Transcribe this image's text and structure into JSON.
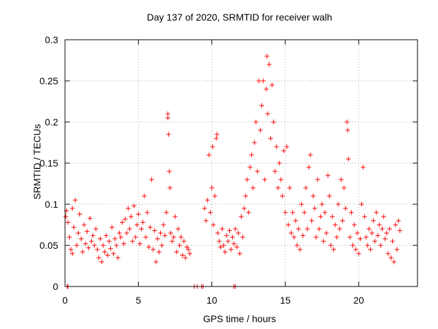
{
  "chart_data": {
    "type": "scatter",
    "title": "Day 137 of 2020, SRMTID for receiver walh",
    "xlabel": "GPS time / hours",
    "ylabel": "SRMTID / TECUs",
    "xlim": [
      0,
      24
    ],
    "ylim": [
      0,
      0.3
    ],
    "xticks": [
      0,
      5,
      10,
      15,
      20
    ],
    "xtick_labels": [
      "0",
      "5",
      "10",
      "15",
      "20"
    ],
    "yticks": [
      0,
      0.05,
      0.1,
      0.15,
      0.2,
      0.25,
      0.3
    ],
    "ytick_labels": [
      "0",
      "0.05",
      "0.1",
      "0.15",
      "0.2",
      "0.25",
      "0.3"
    ],
    "grid": true,
    "marker": "plus",
    "marker_color": "#ff0000",
    "series": [
      {
        "name": "SRMTID",
        "points": [
          [
            0.15,
            0.0
          ],
          [
            0.2,
            0.0
          ],
          [
            8.8,
            0.0
          ],
          [
            9.0,
            0.0
          ],
          [
            9.3,
            0.0
          ],
          [
            9.4,
            0.0
          ],
          [
            11.5,
            0.0
          ],
          [
            11.6,
            0.0
          ],
          [
            0.05,
            0.085
          ],
          [
            0.1,
            0.092
          ],
          [
            0.2,
            0.078
          ],
          [
            0.3,
            0.06
          ],
          [
            0.4,
            0.045
          ],
          [
            0.5,
            0.04
          ],
          [
            0.5,
            0.095
          ],
          [
            0.6,
            0.072
          ],
          [
            0.7,
            0.105
          ],
          [
            0.8,
            0.05
          ],
          [
            0.9,
            0.065
          ],
          [
            1.0,
            0.088
          ],
          [
            1.1,
            0.058
          ],
          [
            1.2,
            0.042
          ],
          [
            1.3,
            0.075
          ],
          [
            1.4,
            0.052
          ],
          [
            1.5,
            0.067
          ],
          [
            1.6,
            0.047
          ],
          [
            1.7,
            0.083
          ],
          [
            1.8,
            0.055
          ],
          [
            1.9,
            0.062
          ],
          [
            2.0,
            0.05
          ],
          [
            2.1,
            0.07
          ],
          [
            2.2,
            0.045
          ],
          [
            2.3,
            0.035
          ],
          [
            2.4,
            0.058
          ],
          [
            2.5,
            0.03
          ],
          [
            2.6,
            0.05
          ],
          [
            2.7,
            0.042
          ],
          [
            2.8,
            0.062
          ],
          [
            2.9,
            0.038
          ],
          [
            3.0,
            0.055
          ],
          [
            3.1,
            0.046
          ],
          [
            3.2,
            0.072
          ],
          [
            3.3,
            0.04
          ],
          [
            3.4,
            0.058
          ],
          [
            3.5,
            0.05
          ],
          [
            3.6,
            0.035
          ],
          [
            3.7,
            0.065
          ],
          [
            3.8,
            0.06
          ],
          [
            3.9,
            0.078
          ],
          [
            4.0,
            0.052
          ],
          [
            4.1,
            0.082
          ],
          [
            4.2,
            0.065
          ],
          [
            4.3,
            0.095
          ],
          [
            4.4,
            0.07
          ],
          [
            4.5,
            0.085
          ],
          [
            4.6,
            0.055
          ],
          [
            4.7,
            0.098
          ],
          [
            4.8,
            0.06
          ],
          [
            4.9,
            0.075
          ],
          [
            5.0,
            0.088
          ],
          [
            5.1,
            0.052
          ],
          [
            5.2,
            0.07
          ],
          [
            5.3,
            0.078
          ],
          [
            5.4,
            0.11
          ],
          [
            5.5,
            0.06
          ],
          [
            5.6,
            0.09
          ],
          [
            5.7,
            0.048
          ],
          [
            5.8,
            0.072
          ],
          [
            5.9,
            0.13
          ],
          [
            6.0,
            0.045
          ],
          [
            6.1,
            0.068
          ],
          [
            6.2,
            0.03
          ],
          [
            6.3,
            0.058
          ],
          [
            6.4,
            0.042
          ],
          [
            6.5,
            0.065
          ],
          [
            6.6,
            0.05
          ],
          [
            6.7,
            0.075
          ],
          [
            6.8,
            0.062
          ],
          [
            6.9,
            0.09
          ],
          [
            7.0,
            0.21
          ],
          [
            7.0,
            0.205
          ],
          [
            7.05,
            0.185
          ],
          [
            7.1,
            0.14
          ],
          [
            7.15,
            0.12
          ],
          [
            7.2,
            0.065
          ],
          [
            7.3,
            0.055
          ],
          [
            7.4,
            0.06
          ],
          [
            7.5,
            0.085
          ],
          [
            7.6,
            0.042
          ],
          [
            7.7,
            0.07
          ],
          [
            7.8,
            0.05
          ],
          [
            7.9,
            0.06
          ],
          [
            8.0,
            0.038
          ],
          [
            8.1,
            0.055
          ],
          [
            8.2,
            0.035
          ],
          [
            8.3,
            0.048
          ],
          [
            8.4,
            0.045
          ],
          [
            8.5,
            0.04
          ],
          [
            9.5,
            0.095
          ],
          [
            9.6,
            0.08
          ],
          [
            9.7,
            0.105
          ],
          [
            9.8,
            0.16
          ],
          [
            9.9,
            0.09
          ],
          [
            10.0,
            0.12
          ],
          [
            10.05,
            0.17
          ],
          [
            10.1,
            0.075
          ],
          [
            10.2,
            0.11
          ],
          [
            10.3,
            0.18
          ],
          [
            10.35,
            0.185
          ],
          [
            10.4,
            0.065
          ],
          [
            10.5,
            0.055
          ],
          [
            10.6,
            0.048
          ],
          [
            10.7,
            0.07
          ],
          [
            10.8,
            0.05
          ],
          [
            10.9,
            0.042
          ],
          [
            11.0,
            0.062
          ],
          [
            11.1,
            0.055
          ],
          [
            11.2,
            0.068
          ],
          [
            11.3,
            0.045
          ],
          [
            11.4,
            0.06
          ],
          [
            11.5,
            0.052
          ],
          [
            11.6,
            0.07
          ],
          [
            11.7,
            0.048
          ],
          [
            11.8,
            0.065
          ],
          [
            11.9,
            0.04
          ],
          [
            12.0,
            0.085
          ],
          [
            12.1,
            0.06
          ],
          [
            12.2,
            0.095
          ],
          [
            12.3,
            0.11
          ],
          [
            12.4,
            0.13
          ],
          [
            12.5,
            0.09
          ],
          [
            12.6,
            0.145
          ],
          [
            12.7,
            0.16
          ],
          [
            12.8,
            0.12
          ],
          [
            12.9,
            0.175
          ],
          [
            13.0,
            0.2
          ],
          [
            13.1,
            0.14
          ],
          [
            13.2,
            0.25
          ],
          [
            13.3,
            0.19
          ],
          [
            13.4,
            0.22
          ],
          [
            13.5,
            0.25
          ],
          [
            13.6,
            0.13
          ],
          [
            13.7,
            0.24
          ],
          [
            13.75,
            0.28
          ],
          [
            13.8,
            0.21
          ],
          [
            13.9,
            0.27
          ],
          [
            14.0,
            0.18
          ],
          [
            14.1,
            0.245
          ],
          [
            14.2,
            0.2
          ],
          [
            14.3,
            0.14
          ],
          [
            14.4,
            0.17
          ],
          [
            14.5,
            0.12
          ],
          [
            14.6,
            0.15
          ],
          [
            14.7,
            0.13
          ],
          [
            14.8,
            0.11
          ],
          [
            14.9,
            0.165
          ],
          [
            15.0,
            0.09
          ],
          [
            15.1,
            0.17
          ],
          [
            15.2,
            0.075
          ],
          [
            15.3,
            0.12
          ],
          [
            15.4,
            0.065
          ],
          [
            15.5,
            0.09
          ],
          [
            15.6,
            0.06
          ],
          [
            15.7,
            0.08
          ],
          [
            15.8,
            0.05
          ],
          [
            15.9,
            0.07
          ],
          [
            16.0,
            0.045
          ],
          [
            16.1,
            0.1
          ],
          [
            16.2,
            0.062
          ],
          [
            16.3,
            0.09
          ],
          [
            16.4,
            0.12
          ],
          [
            16.5,
            0.07
          ],
          [
            16.6,
            0.145
          ],
          [
            16.7,
            0.16
          ],
          [
            16.8,
            0.08
          ],
          [
            16.9,
            0.11
          ],
          [
            17.0,
            0.095
          ],
          [
            17.1,
            0.06
          ],
          [
            17.2,
            0.13
          ],
          [
            17.3,
            0.07
          ],
          [
            17.4,
            0.085
          ],
          [
            17.5,
            0.1
          ],
          [
            17.6,
            0.055
          ],
          [
            17.7,
            0.09
          ],
          [
            17.8,
            0.065
          ],
          [
            17.9,
            0.135
          ],
          [
            18.0,
            0.11
          ],
          [
            18.1,
            0.05
          ],
          [
            18.2,
            0.085
          ],
          [
            18.3,
            0.045
          ],
          [
            18.4,
            0.075
          ],
          [
            18.5,
            0.06
          ],
          [
            18.6,
            0.1
          ],
          [
            18.7,
            0.07
          ],
          [
            18.8,
            0.13
          ],
          [
            18.9,
            0.08
          ],
          [
            19.0,
            0.12
          ],
          [
            19.1,
            0.095
          ],
          [
            19.2,
            0.2
          ],
          [
            19.25,
            0.19
          ],
          [
            19.3,
            0.155
          ],
          [
            19.4,
            0.06
          ],
          [
            19.5,
            0.09
          ],
          [
            19.6,
            0.05
          ],
          [
            19.7,
            0.075
          ],
          [
            19.8,
            0.045
          ],
          [
            19.9,
            0.065
          ],
          [
            20.0,
            0.04
          ],
          [
            20.1,
            0.058
          ],
          [
            20.2,
            0.1
          ],
          [
            20.3,
            0.145
          ],
          [
            20.4,
            0.085
          ],
          [
            20.5,
            0.06
          ],
          [
            20.6,
            0.05
          ],
          [
            20.7,
            0.07
          ],
          [
            20.8,
            0.045
          ],
          [
            20.9,
            0.065
          ],
          [
            21.0,
            0.08
          ],
          [
            21.1,
            0.055
          ],
          [
            21.2,
            0.09
          ],
          [
            21.3,
            0.062
          ],
          [
            21.4,
            0.075
          ],
          [
            21.5,
            0.05
          ],
          [
            21.6,
            0.07
          ],
          [
            21.7,
            0.085
          ],
          [
            21.8,
            0.058
          ],
          [
            21.9,
            0.065
          ],
          [
            22.0,
            0.04
          ],
          [
            22.1,
            0.07
          ],
          [
            22.2,
            0.035
          ],
          [
            22.3,
            0.055
          ],
          [
            22.4,
            0.03
          ],
          [
            22.5,
            0.075
          ],
          [
            22.6,
            0.045
          ],
          [
            22.7,
            0.08
          ],
          [
            22.8,
            0.068
          ]
        ]
      }
    ]
  }
}
